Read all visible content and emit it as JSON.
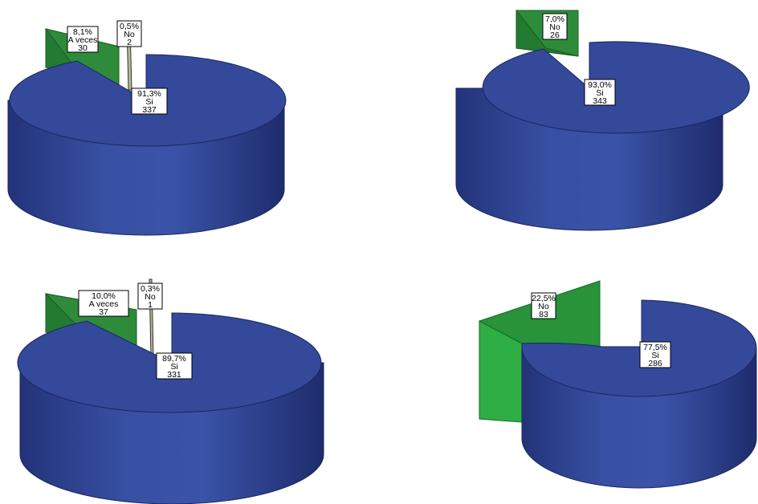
{
  "colors": {
    "si_face": "#34499a",
    "si_side": "#2f4391",
    "si_side_dark": "#1f2d6e",
    "si_edge": "#1a2660",
    "green": "#2e8b3a",
    "green_light": "#2fae45",
    "no_thin": "#b7b79a"
  },
  "chart_data": [
    {
      "type": "pie",
      "title": "",
      "slices": [
        {
          "label": "Si",
          "percent_text": "91,3%",
          "count": "337",
          "value": 91.3,
          "color": "#34499a"
        },
        {
          "label": "A veces",
          "percent_text": "8,1%",
          "count": "30",
          "value": 8.1,
          "color": "#2e8b3a"
        },
        {
          "label": "No",
          "percent_text": "0,5%",
          "count": "2",
          "value": 0.5,
          "color": "#b7b79a"
        }
      ]
    },
    {
      "type": "pie",
      "title": "",
      "slices": [
        {
          "label": "Si",
          "percent_text": "93,0%",
          "count": "343",
          "value": 93.0,
          "color": "#34499a"
        },
        {
          "label": "No",
          "percent_text": "7,0%",
          "count": "26",
          "value": 7.0,
          "color": "#2e8b3a"
        }
      ]
    },
    {
      "type": "pie",
      "title": "",
      "slices": [
        {
          "label": "Si",
          "percent_text": "89,7%",
          "count": "331",
          "value": 89.7,
          "color": "#34499a"
        },
        {
          "label": "A veces",
          "percent_text": "10,0%",
          "count": "37",
          "value": 10.0,
          "color": "#2e8b3a"
        },
        {
          "label": "No",
          "percent_text": "0,3%",
          "count": "1",
          "value": 0.3,
          "color": "#b7b79a"
        }
      ]
    },
    {
      "type": "pie",
      "title": "",
      "slices": [
        {
          "label": "Si",
          "percent_text": "77,5%",
          "count": "286",
          "value": 77.5,
          "color": "#34499a"
        },
        {
          "label": "No",
          "percent_text": "22,5%",
          "count": "83",
          "value": 22.5,
          "color": "#2fae45"
        }
      ]
    }
  ]
}
